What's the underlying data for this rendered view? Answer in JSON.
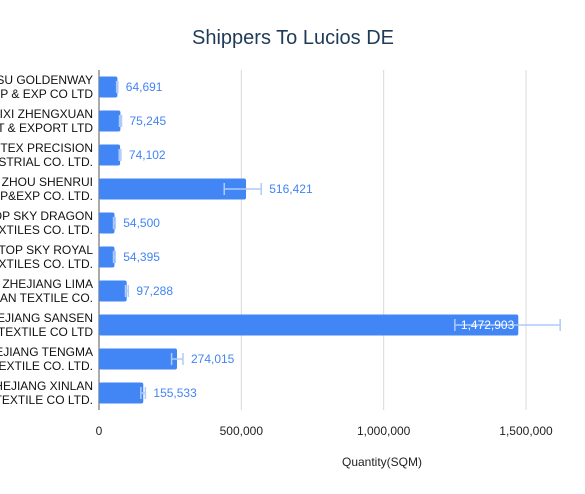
{
  "chart_data": {
    "type": "bar",
    "orientation": "horizontal",
    "title": "Shippers To Lucios DE",
    "xlabel": "Quantity(SQM)",
    "ylabel": "",
    "xlim": [
      0,
      1500000
    ],
    "x_ticks": [
      0,
      500000,
      1000000,
      1500000
    ],
    "x_tick_labels": [
      "0",
      "500,000",
      "1,000,000",
      "1,500,000"
    ],
    "grid": true,
    "bar_color": "#4285f4",
    "error_bar_color": "#aecbfa",
    "categories": [
      [
        "SU GOLDENWAY",
        "P & EXP CO LTD"
      ],
      [
        "IXI ZHENGXUAN",
        "T & EXPORT LTD"
      ],
      [
        "TEX PRECISION",
        "STRIAL CO. LTD."
      ],
      [
        "ZHOU SHENRUI",
        "P&EXP CO. LTD."
      ],
      [
        "OP SKY DRAGON",
        "XTILES CO. LTD."
      ],
      [
        "TOP SKY ROYAL",
        "XTILES CO. LTD."
      ],
      [
        "ZHEJIANG LIMA",
        "AN TEXTILE CO."
      ],
      [
        "EJIANG SANSEN",
        "TEXTILE CO LTD"
      ],
      [
        "EJIANG TENGMA",
        "EXTILE CO. LTD."
      ],
      [
        "HEJIANG XINLAN",
        "TEXTILE CO LTD."
      ]
    ],
    "values": [
      64691,
      75245,
      74102,
      516421,
      54500,
      54395,
      97288,
      1472903,
      274015,
      155533
    ],
    "value_labels": [
      "64,691",
      "75,245",
      "74,102",
      "516,421",
      "54,500",
      "54,395",
      "97,288",
      "1,472,903",
      "274,015",
      "155,533"
    ],
    "error_bars": [
      [
        62000,
        66000
      ],
      [
        72000,
        79000
      ],
      [
        71000,
        77000
      ],
      [
        440000,
        570000
      ],
      [
        51000,
        57000
      ],
      [
        51000,
        57000
      ],
      [
        93000,
        103000
      ],
      [
        1250000,
        1620000
      ],
      [
        255000,
        295000
      ],
      [
        147000,
        163000
      ]
    ]
  }
}
